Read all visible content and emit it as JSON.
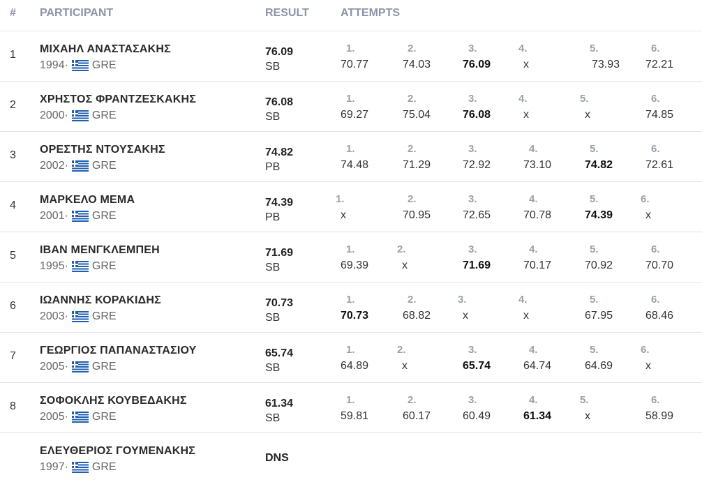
{
  "header": {
    "rank": "#",
    "participant": "PARTICIPANT",
    "result": "RESULT",
    "attempts": "ATTEMPTS"
  },
  "separator": " · ",
  "rows": [
    {
      "rank": "1",
      "name": "ΜΙΧΑΗΛ ΑΝΑΣΤΑΣΑΚΗΣ",
      "year": "1994",
      "country": "GRE",
      "result": "76.09",
      "note": "SB",
      "attempts": [
        {
          "n": "1.",
          "v": "70.77",
          "best": false
        },
        {
          "n": "2.",
          "v": "74.03",
          "best": false
        },
        {
          "n": "3.",
          "v": "76.09",
          "best": true
        },
        {
          "n": "4.",
          "v": "x",
          "best": false
        },
        {
          "n": "5.",
          "v": "73.93",
          "best": false
        },
        {
          "n": "6.",
          "v": "72.21",
          "best": false
        }
      ]
    },
    {
      "rank": "2",
      "name": "ΧΡΗΣΤΟΣ ΦΡΑΝΤΖΕΣΚΑΚΗΣ",
      "year": "2000",
      "country": "GRE",
      "result": "76.08",
      "note": "SB",
      "attempts": [
        {
          "n": "1.",
          "v": "69.27",
          "best": false
        },
        {
          "n": "2.",
          "v": "75.04",
          "best": false
        },
        {
          "n": "3.",
          "v": "76.08",
          "best": true
        },
        {
          "n": "4.",
          "v": "x",
          "best": false
        },
        {
          "n": "5.",
          "v": "x",
          "best": false
        },
        {
          "n": "6.",
          "v": "74.85",
          "best": false
        }
      ]
    },
    {
      "rank": "3",
      "name": "ΟΡΕΣΤΗΣ ΝΤΟΥΣΑΚΗΣ",
      "year": "2002",
      "country": "GRE",
      "result": "74.82",
      "note": "PB",
      "attempts": [
        {
          "n": "1.",
          "v": "74.48",
          "best": false
        },
        {
          "n": "2.",
          "v": "71.29",
          "best": false
        },
        {
          "n": "3.",
          "v": "72.92",
          "best": false
        },
        {
          "n": "4.",
          "v": "73.10",
          "best": false
        },
        {
          "n": "5.",
          "v": "74.82",
          "best": true
        },
        {
          "n": "6.",
          "v": "72.61",
          "best": false
        }
      ]
    },
    {
      "rank": "4",
      "name": "ΜΑΡΚΕΛΟ ΜΕΜΑ",
      "year": "2001",
      "country": "GRE",
      "result": "74.39",
      "note": "PB",
      "attempts": [
        {
          "n": "1.",
          "v": "x",
          "best": false
        },
        {
          "n": "2.",
          "v": "70.95",
          "best": false
        },
        {
          "n": "3.",
          "v": "72.65",
          "best": false
        },
        {
          "n": "4.",
          "v": "70.78",
          "best": false
        },
        {
          "n": "5.",
          "v": "74.39",
          "best": true
        },
        {
          "n": "6.",
          "v": "x",
          "best": false
        }
      ]
    },
    {
      "rank": "5",
      "name": "ΙΒΑΝ ΜΕΝΓΚΛΕΜΠΕΗ",
      "year": "1995",
      "country": "GRE",
      "result": "71.69",
      "note": "SB",
      "attempts": [
        {
          "n": "1.",
          "v": "69.39",
          "best": false
        },
        {
          "n": "2.",
          "v": "x",
          "best": false
        },
        {
          "n": "3.",
          "v": "71.69",
          "best": true
        },
        {
          "n": "4.",
          "v": "70.17",
          "best": false
        },
        {
          "n": "5.",
          "v": "70.92",
          "best": false
        },
        {
          "n": "6.",
          "v": "70.70",
          "best": false
        }
      ]
    },
    {
      "rank": "6",
      "name": "ΙΩΑΝΝΗΣ ΚΟΡΑΚΙΔΗΣ",
      "year": "2003",
      "country": "GRE",
      "result": "70.73",
      "note": "SB",
      "attempts": [
        {
          "n": "1.",
          "v": "70.73",
          "best": true
        },
        {
          "n": "2.",
          "v": "68.82",
          "best": false
        },
        {
          "n": "3.",
          "v": "x",
          "best": false
        },
        {
          "n": "4.",
          "v": "x",
          "best": false
        },
        {
          "n": "5.",
          "v": "67.95",
          "best": false
        },
        {
          "n": "6.",
          "v": "68.46",
          "best": false
        }
      ]
    },
    {
      "rank": "7",
      "name": "ΓΕΩΡΓΙΟΣ ΠΑΠΑΝΑΣΤΑΣΙΟΥ",
      "year": "2005",
      "country": "GRE",
      "result": "65.74",
      "note": "SB",
      "attempts": [
        {
          "n": "1.",
          "v": "64.89",
          "best": false
        },
        {
          "n": "2.",
          "v": "x",
          "best": false
        },
        {
          "n": "3.",
          "v": "65.74",
          "best": true
        },
        {
          "n": "4.",
          "v": "64.74",
          "best": false
        },
        {
          "n": "5.",
          "v": "64.69",
          "best": false
        },
        {
          "n": "6.",
          "v": "x",
          "best": false
        }
      ]
    },
    {
      "rank": "8",
      "name": "ΣΟΦΟΚΛΗΣ ΚΟΥΒΕΔΑΚΗΣ",
      "year": "2005",
      "country": "GRE",
      "result": "61.34",
      "note": "SB",
      "attempts": [
        {
          "n": "1.",
          "v": "59.81",
          "best": false
        },
        {
          "n": "2.",
          "v": "60.17",
          "best": false
        },
        {
          "n": "3.",
          "v": "60.49",
          "best": false
        },
        {
          "n": "4.",
          "v": "61.34",
          "best": true
        },
        {
          "n": "5.",
          "v": "x",
          "best": false
        },
        {
          "n": "6.",
          "v": "58.99",
          "best": false
        }
      ]
    },
    {
      "rank": "",
      "name": "ΕΛΕΥΘΕΡΙΟΣ ΓΟΥΜΕΝΑΚΗΣ",
      "year": "1997",
      "country": "GRE",
      "result": "DNS",
      "note": "",
      "dns": true,
      "attempts": []
    }
  ]
}
